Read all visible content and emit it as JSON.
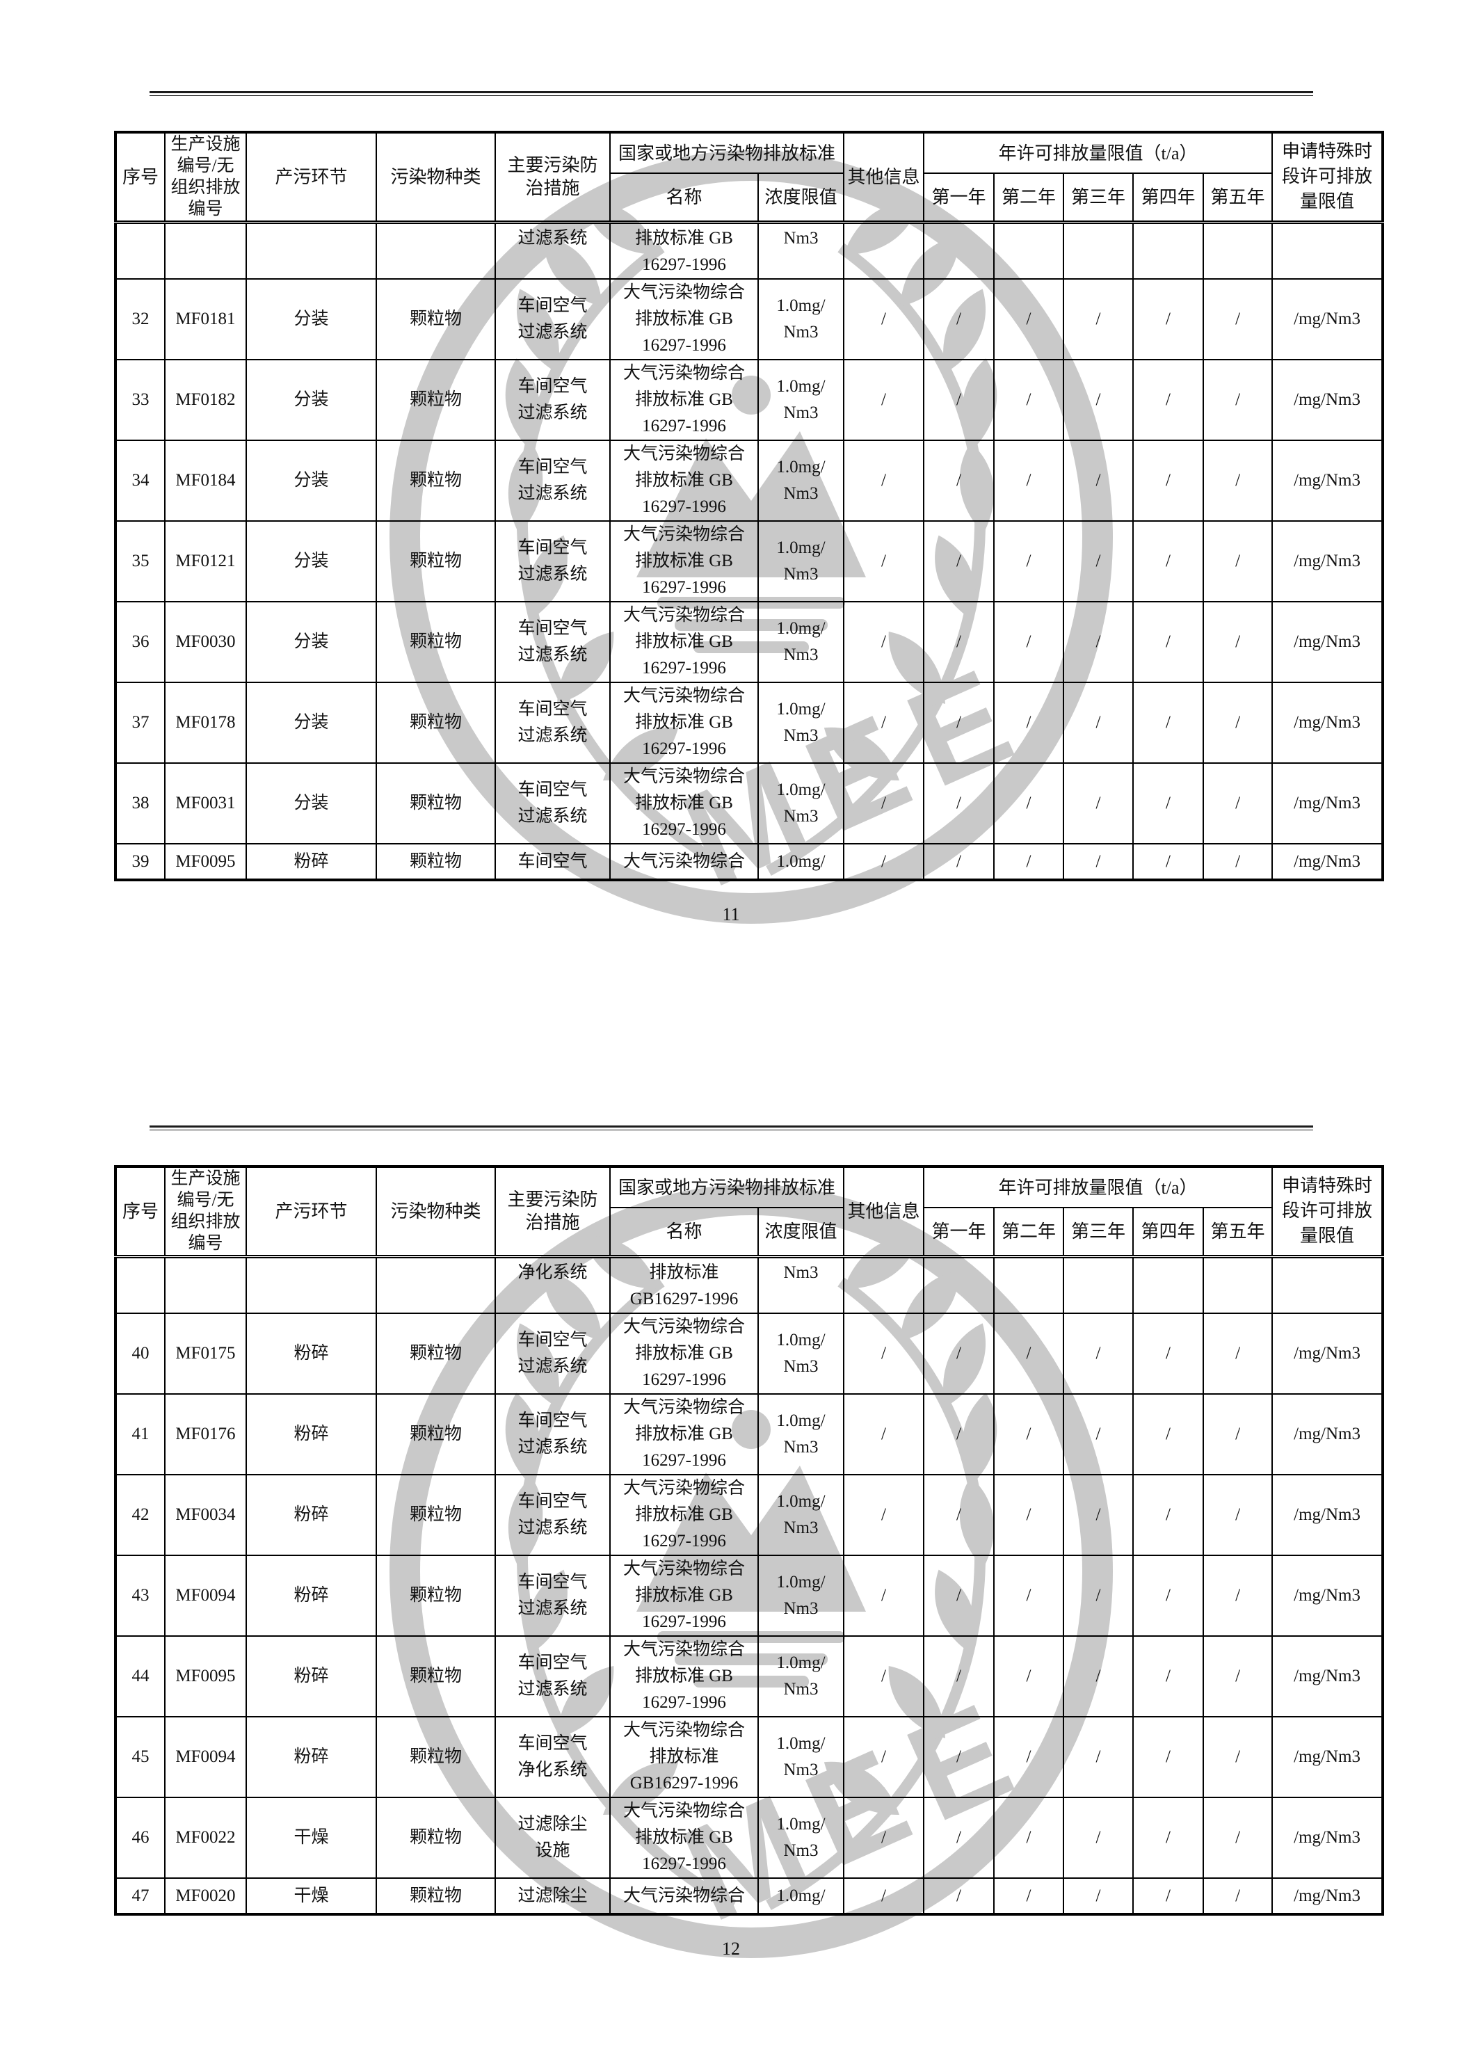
{
  "accent_colors": {
    "watermark_gray": "#c9c9c9",
    "line_black": "#000000",
    "paper_white": "#ffffff"
  },
  "watermark": {
    "label": "MEE",
    "description": "mee-ministry-seal-watermark"
  },
  "table_header": {
    "seq": "序号",
    "facility": "生产设施\n编号/无\n组织排放\n编号",
    "stage": "产污环节",
    "pollutant": "污染物种类",
    "measure": "主要污染防\n治措施",
    "standard_group": "国家或地方污染物排放标准",
    "name": "名称",
    "limit": "浓度限值",
    "other": "其他信息",
    "annual_group": "年许可排放量限值（t/a）",
    "years": [
      "第一年",
      "第二年",
      "第三年",
      "第四年",
      "第五年"
    ],
    "special": "申请特殊时\n段许可排放\n量限值"
  },
  "pages": [
    {
      "page_number": "11",
      "rows": [
        {
          "kind": "carry",
          "no": "",
          "id": "",
          "stage": "",
          "pollutant": "",
          "measure": "过滤系统",
          "std_name": "排放标准 GB\n16297-1996",
          "limit": "Nm3",
          "other": "",
          "y1": "",
          "y2": "",
          "y3": "",
          "y4": "",
          "y5": "",
          "special": ""
        },
        {
          "kind": "full",
          "no": "32",
          "id": "MF0181",
          "stage": "分装",
          "pollutant": "颗粒物",
          "measure": "车间空气\n过滤系统",
          "std_name": "大气污染物综合\n排放标准 GB\n16297-1996",
          "limit": "1.0mg/\nNm3",
          "other": "/",
          "y1": "/",
          "y2": "/",
          "y3": "/",
          "y4": "/",
          "y5": "/",
          "special": "/mg/Nm3"
        },
        {
          "kind": "full",
          "no": "33",
          "id": "MF0182",
          "stage": "分装",
          "pollutant": "颗粒物",
          "measure": "车间空气\n过滤系统",
          "std_name": "大气污染物综合\n排放标准 GB\n16297-1996",
          "limit": "1.0mg/\nNm3",
          "other": "/",
          "y1": "/",
          "y2": "/",
          "y3": "/",
          "y4": "/",
          "y5": "/",
          "special": "/mg/Nm3"
        },
        {
          "kind": "full",
          "no": "34",
          "id": "MF0184",
          "stage": "分装",
          "pollutant": "颗粒物",
          "measure": "车间空气\n过滤系统",
          "std_name": "大气污染物综合\n排放标准 GB\n16297-1996",
          "limit": "1.0mg/\nNm3",
          "other": "/",
          "y1": "/",
          "y2": "/",
          "y3": "/",
          "y4": "/",
          "y5": "/",
          "special": "/mg/Nm3"
        },
        {
          "kind": "full",
          "no": "35",
          "id": "MF0121",
          "stage": "分装",
          "pollutant": "颗粒物",
          "measure": "车间空气\n过滤系统",
          "std_name": "大气污染物综合\n排放标准 GB\n16297-1996",
          "limit": "1.0mg/\nNm3",
          "other": "/",
          "y1": "/",
          "y2": "/",
          "y3": "/",
          "y4": "/",
          "y5": "/",
          "special": "/mg/Nm3"
        },
        {
          "kind": "full",
          "no": "36",
          "id": "MF0030",
          "stage": "分装",
          "pollutant": "颗粒物",
          "measure": "车间空气\n过滤系统",
          "std_name": "大气污染物综合\n排放标准 GB\n16297-1996",
          "limit": "1.0mg/\nNm3",
          "other": "/",
          "y1": "/",
          "y2": "/",
          "y3": "/",
          "y4": "/",
          "y5": "/",
          "special": "/mg/Nm3"
        },
        {
          "kind": "full",
          "no": "37",
          "id": "MF0178",
          "stage": "分装",
          "pollutant": "颗粒物",
          "measure": "车间空气\n过滤系统",
          "std_name": "大气污染物综合\n排放标准 GB\n16297-1996",
          "limit": "1.0mg/\nNm3",
          "other": "/",
          "y1": "/",
          "y2": "/",
          "y3": "/",
          "y4": "/",
          "y5": "/",
          "special": "/mg/Nm3"
        },
        {
          "kind": "full",
          "no": "38",
          "id": "MF0031",
          "stage": "分装",
          "pollutant": "颗粒物",
          "measure": "车间空气\n过滤系统",
          "std_name": "大气污染物综合\n排放标准 GB\n16297-1996",
          "limit": "1.0mg/\nNm3",
          "other": "/",
          "y1": "/",
          "y2": "/",
          "y3": "/",
          "y4": "/",
          "y5": "/",
          "special": "/mg/Nm3"
        },
        {
          "kind": "cut",
          "no": "39",
          "id": "MF0095",
          "stage": "粉碎",
          "pollutant": "颗粒物",
          "measure": "车间空气",
          "std_name": "大气污染物综合",
          "limit": "1.0mg/",
          "other": "/",
          "y1": "/",
          "y2": "/",
          "y3": "/",
          "y4": "/",
          "y5": "/",
          "special": "/mg/Nm3"
        }
      ]
    },
    {
      "page_number": "12",
      "rows": [
        {
          "kind": "carry",
          "no": "",
          "id": "",
          "stage": "",
          "pollutant": "",
          "measure": "净化系统",
          "std_name": "排放标准\nGB16297-1996",
          "limit": "Nm3",
          "other": "",
          "y1": "",
          "y2": "",
          "y3": "",
          "y4": "",
          "y5": "",
          "special": ""
        },
        {
          "kind": "full",
          "no": "40",
          "id": "MF0175",
          "stage": "粉碎",
          "pollutant": "颗粒物",
          "measure": "车间空气\n过滤系统",
          "std_name": "大气污染物综合\n排放标准 GB\n16297-1996",
          "limit": "1.0mg/\nNm3",
          "other": "/",
          "y1": "/",
          "y2": "/",
          "y3": "/",
          "y4": "/",
          "y5": "/",
          "special": "/mg/Nm3"
        },
        {
          "kind": "full",
          "no": "41",
          "id": "MF0176",
          "stage": "粉碎",
          "pollutant": "颗粒物",
          "measure": "车间空气\n过滤系统",
          "std_name": "大气污染物综合\n排放标准 GB\n16297-1996",
          "limit": "1.0mg/\nNm3",
          "other": "/",
          "y1": "/",
          "y2": "/",
          "y3": "/",
          "y4": "/",
          "y5": "/",
          "special": "/mg/Nm3"
        },
        {
          "kind": "full",
          "no": "42",
          "id": "MF0034",
          "stage": "粉碎",
          "pollutant": "颗粒物",
          "measure": "车间空气\n过滤系统",
          "std_name": "大气污染物综合\n排放标准 GB\n16297-1996",
          "limit": "1.0mg/\nNm3",
          "other": "/",
          "y1": "/",
          "y2": "/",
          "y3": "/",
          "y4": "/",
          "y5": "/",
          "special": "/mg/Nm3"
        },
        {
          "kind": "full",
          "no": "43",
          "id": "MF0094",
          "stage": "粉碎",
          "pollutant": "颗粒物",
          "measure": "车间空气\n过滤系统",
          "std_name": "大气污染物综合\n排放标准 GB\n16297-1996",
          "limit": "1.0mg/\nNm3",
          "other": "/",
          "y1": "/",
          "y2": "/",
          "y3": "/",
          "y4": "/",
          "y5": "/",
          "special": "/mg/Nm3"
        },
        {
          "kind": "full",
          "no": "44",
          "id": "MF0095",
          "stage": "粉碎",
          "pollutant": "颗粒物",
          "measure": "车间空气\n过滤系统",
          "std_name": "大气污染物综合\n排放标准 GB\n16297-1996",
          "limit": "1.0mg/\nNm3",
          "other": "/",
          "y1": "/",
          "y2": "/",
          "y3": "/",
          "y4": "/",
          "y5": "/",
          "special": "/mg/Nm3"
        },
        {
          "kind": "full",
          "no": "45",
          "id": "MF0094",
          "stage": "粉碎",
          "pollutant": "颗粒物",
          "measure": "车间空气\n净化系统",
          "std_name": "大气污染物综合\n排放标准\nGB16297-1996",
          "limit": "1.0mg/\nNm3",
          "other": "/",
          "y1": "/",
          "y2": "/",
          "y3": "/",
          "y4": "/",
          "y5": "/",
          "special": "/mg/Nm3"
        },
        {
          "kind": "full",
          "no": "46",
          "id": "MF0022",
          "stage": "干燥",
          "pollutant": "颗粒物",
          "measure": "过滤除尘\n设施",
          "std_name": "大气污染物综合\n排放标准 GB\n16297-1996",
          "limit": "1.0mg/\nNm3",
          "other": "/",
          "y1": "/",
          "y2": "/",
          "y3": "/",
          "y4": "/",
          "y5": "/",
          "special": "/mg/Nm3"
        },
        {
          "kind": "cut",
          "no": "47",
          "id": "MF0020",
          "stage": "干燥",
          "pollutant": "颗粒物",
          "measure": "过滤除尘",
          "std_name": "大气污染物综合",
          "limit": "1.0mg/",
          "other": "/",
          "y1": "/",
          "y2": "/",
          "y3": "/",
          "y4": "/",
          "y5": "/",
          "special": "/mg/Nm3"
        }
      ]
    }
  ]
}
